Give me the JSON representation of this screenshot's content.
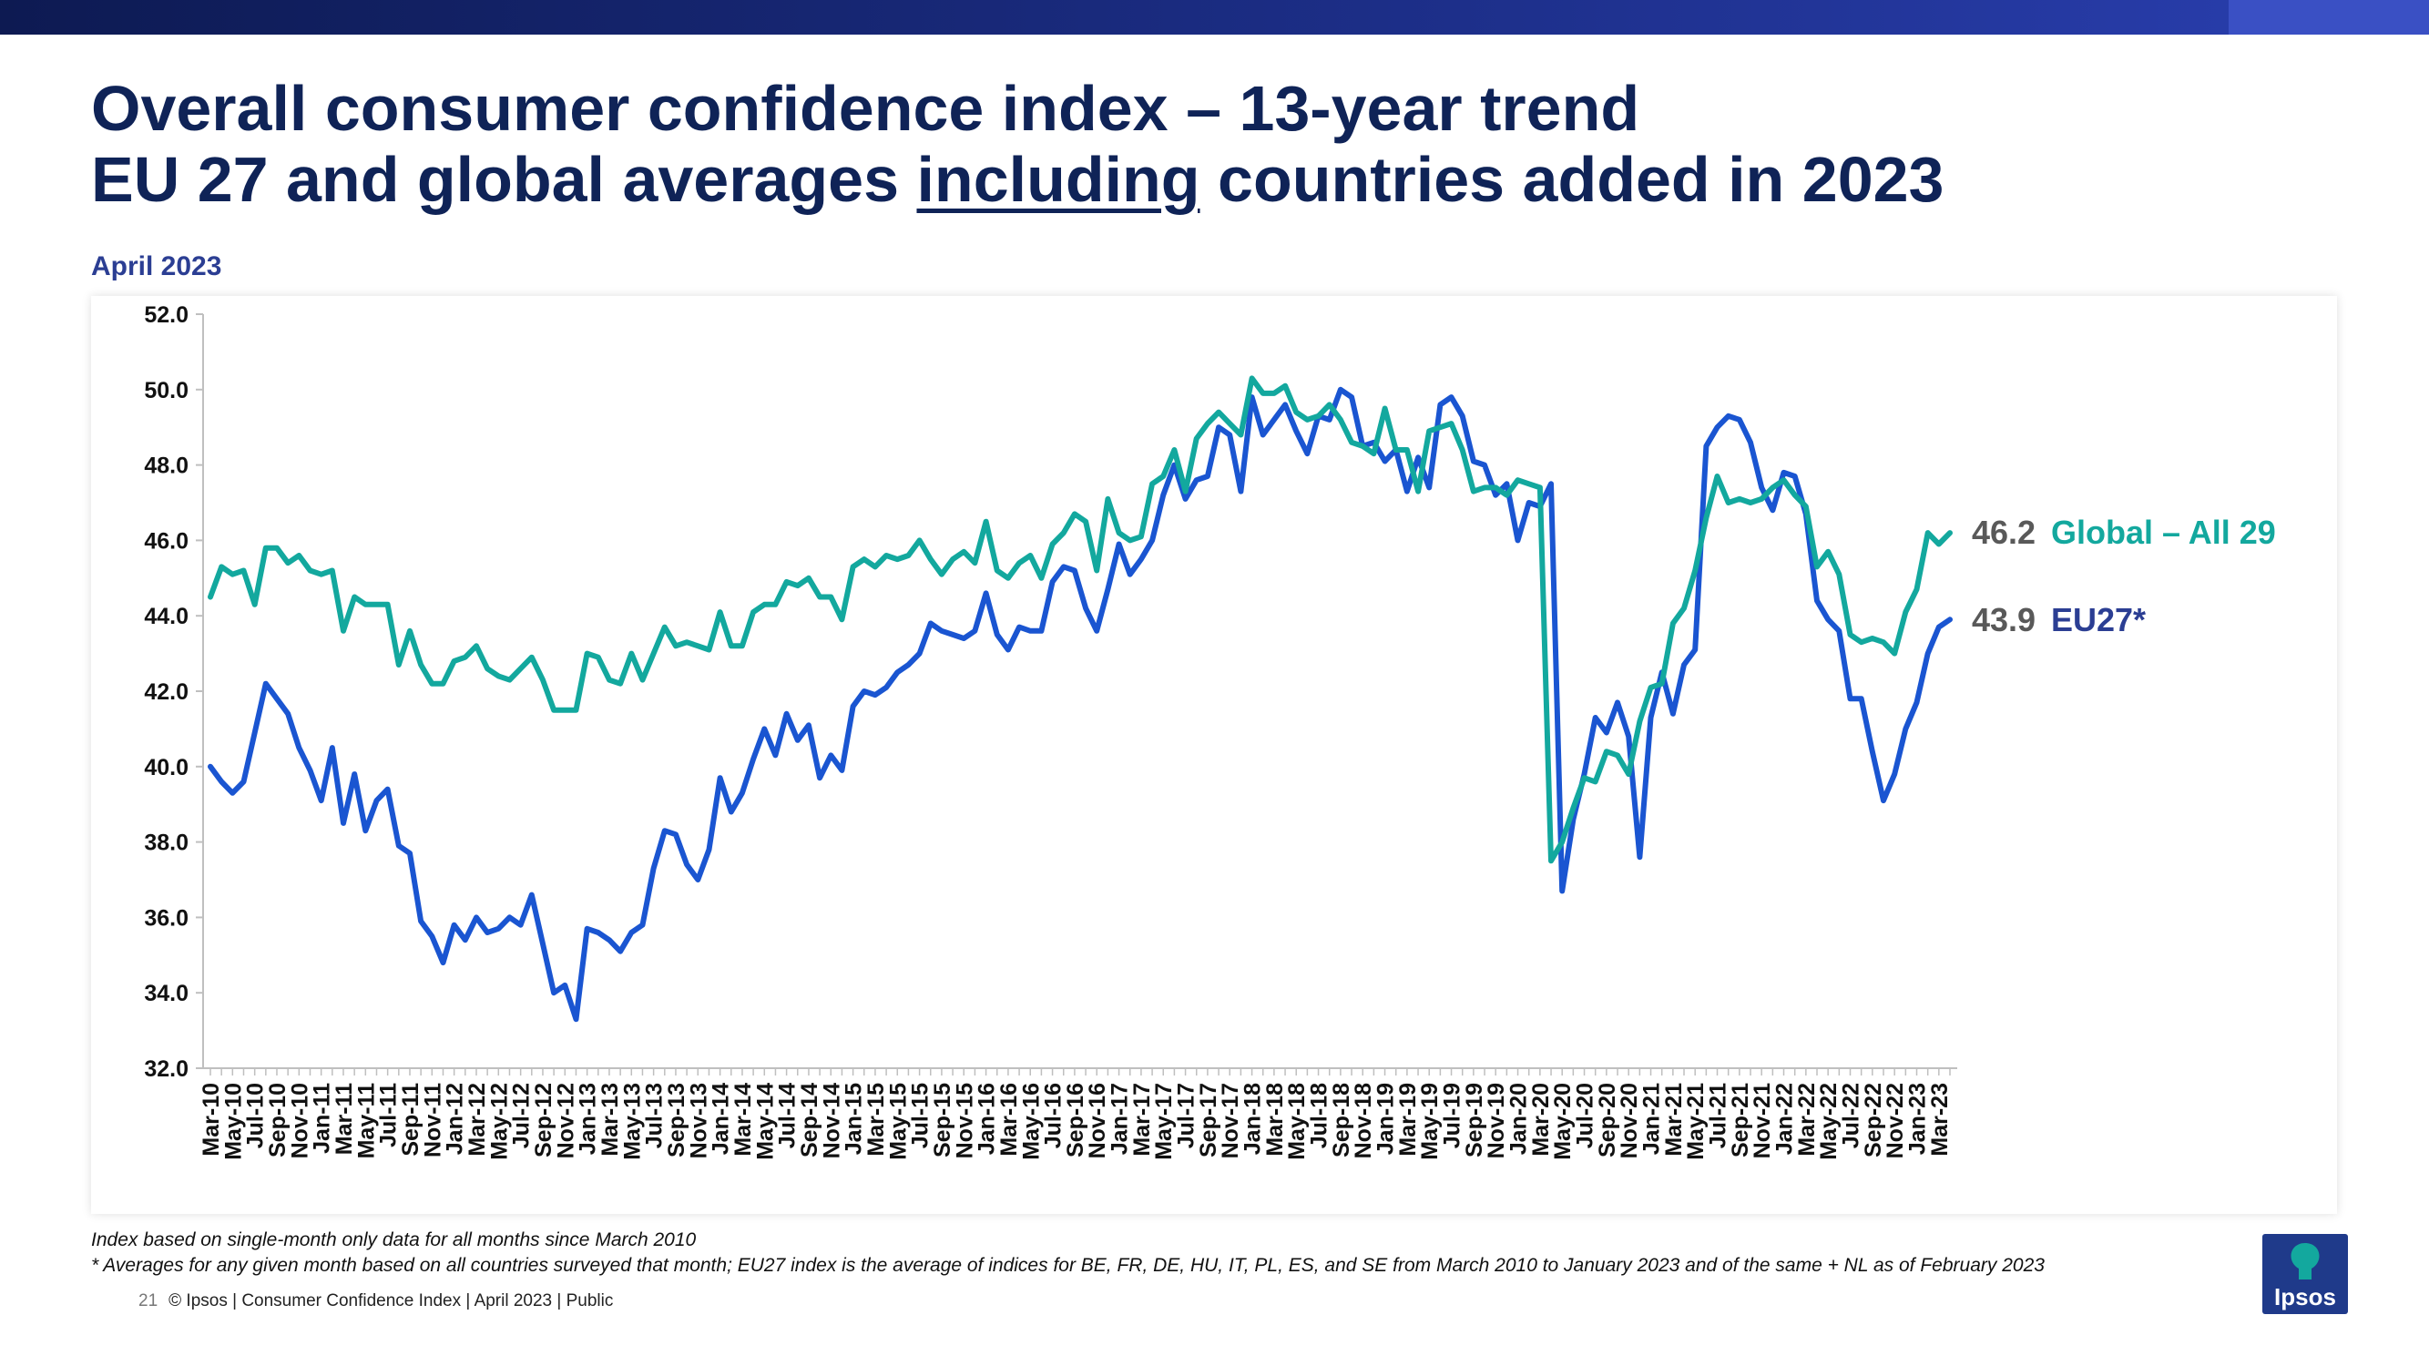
{
  "header": {
    "title_line1": "Overall consumer confidence index – 13-year trend",
    "title_line2_pre": "EU 27 and global averages ",
    "title_line2_underlined": "including",
    "title_line2_post": " countries added in 2023",
    "subtitle": "April 2023"
  },
  "chart_data": {
    "type": "line",
    "title": "Overall consumer confidence index – 13-year trend",
    "ylim": [
      32,
      52
    ],
    "yticks": [
      "32.0",
      "34.0",
      "36.0",
      "38.0",
      "40.0",
      "42.0",
      "44.0",
      "46.0",
      "48.0",
      "50.0",
      "52.0"
    ],
    "x_start": "Mar-10",
    "x_end": "Apr-23",
    "x_tick_labels": [
      "Mar-10",
      "May-10",
      "Jul-10",
      "Sep-10",
      "Nov-10",
      "Jan-11",
      "Mar-11",
      "May-11",
      "Jul-11",
      "Sep-11",
      "Nov-11",
      "Jan-12",
      "Mar-12",
      "May-12",
      "Jul-12",
      "Sep-12",
      "Nov-12",
      "Jan-13",
      "Mar-13",
      "May-13",
      "Jul-13",
      "Sep-13",
      "Nov-13",
      "Jan-14",
      "Mar-14",
      "May-14",
      "Jul-14",
      "Sep-14",
      "Nov-14",
      "Jan-15",
      "Mar-15",
      "May-15",
      "Jul-15",
      "Sep-15",
      "Nov-15",
      "Jan-16",
      "Mar-16",
      "May-16",
      "Jul-16",
      "Sep-16",
      "Nov-16",
      "Jan-17",
      "Mar-17",
      "May-17",
      "Jul-17",
      "Sep-17",
      "Nov-17",
      "Jan-18",
      "Mar-18",
      "May-18",
      "Jul-18",
      "Sep-18",
      "Nov-18",
      "Jan-19",
      "Mar-19",
      "May-19",
      "Jul-19",
      "Sep-19",
      "Nov-19",
      "Jan-20",
      "Mar-20",
      "May-20",
      "Jul-20",
      "Sep-20",
      "Nov-20",
      "Jan-21",
      "Mar-21",
      "May-21",
      "Jul-21",
      "Sep-21",
      "Nov-21",
      "Jan-22",
      "Mar-22",
      "May-22",
      "Jul-22",
      "Sep-22",
      "Nov-22",
      "Jan-23",
      "Mar-23"
    ],
    "grid": false,
    "legend": "end-of-line labels",
    "series": [
      {
        "name": "Global – All 29",
        "end_value_label": "46.2",
        "color": "#13a89e",
        "values": [
          44.5,
          45.3,
          45.1,
          45.2,
          44.3,
          45.8,
          45.8,
          45.4,
          45.6,
          45.2,
          45.1,
          45.2,
          43.6,
          44.5,
          44.3,
          44.3,
          44.3,
          42.7,
          43.6,
          42.7,
          42.2,
          42.2,
          42.8,
          42.9,
          43.2,
          42.6,
          42.4,
          42.3,
          42.6,
          42.9,
          42.3,
          41.5,
          41.5,
          41.5,
          43.0,
          42.9,
          42.3,
          42.2,
          43.0,
          42.3,
          43.0,
          43.7,
          43.2,
          43.3,
          43.2,
          43.1,
          44.1,
          43.2,
          43.2,
          44.1,
          44.3,
          44.3,
          44.9,
          44.8,
          45.0,
          44.5,
          44.5,
          43.9,
          45.3,
          45.5,
          45.3,
          45.6,
          45.5,
          45.6,
          46.0,
          45.5,
          45.1,
          45.5,
          45.7,
          45.4,
          46.5,
          45.2,
          45.0,
          45.4,
          45.6,
          45.0,
          45.9,
          46.2,
          46.7,
          46.5,
          45.2,
          47.1,
          46.2,
          46.0,
          46.1,
          47.5,
          47.7,
          48.4,
          47.3,
          48.7,
          49.1,
          49.4,
          49.1,
          48.8,
          50.3,
          49.9,
          49.9,
          50.1,
          49.4,
          49.2,
          49.3,
          49.6,
          49.2,
          48.6,
          48.5,
          48.3,
          49.5,
          48.4,
          48.4,
          47.3,
          48.9,
          49.0,
          49.1,
          48.4,
          47.3,
          47.4,
          47.4,
          47.2,
          47.6,
          47.5,
          47.4,
          37.5,
          38.0,
          38.9,
          39.7,
          39.6,
          40.4,
          40.3,
          39.8,
          41.2,
          42.1,
          42.2,
          43.8,
          44.2,
          45.2,
          46.6,
          47.7,
          47.0,
          47.1,
          47.0,
          47.1,
          47.4,
          47.6,
          47.2,
          46.9,
          45.3,
          45.7,
          45.1,
          43.5,
          43.3,
          43.4,
          43.3,
          43.0,
          44.1,
          44.7,
          46.2,
          45.9,
          46.2
        ]
      },
      {
        "name": "EU27*",
        "end_value_label": "43.9",
        "color": "#1a55d1",
        "values": [
          40.0,
          39.6,
          39.3,
          39.6,
          40.9,
          42.2,
          41.8,
          41.4,
          40.5,
          39.9,
          39.1,
          40.5,
          38.5,
          39.8,
          38.3,
          39.1,
          39.4,
          37.9,
          37.7,
          35.9,
          35.5,
          34.8,
          35.8,
          35.4,
          36.0,
          35.6,
          35.7,
          36.0,
          35.8,
          36.6,
          35.3,
          34.0,
          34.2,
          33.3,
          35.7,
          35.6,
          35.4,
          35.1,
          35.6,
          35.8,
          37.3,
          38.3,
          38.2,
          37.4,
          37.0,
          37.8,
          39.7,
          38.8,
          39.3,
          40.2,
          41.0,
          40.3,
          41.4,
          40.7,
          41.1,
          39.7,
          40.3,
          39.9,
          41.6,
          42.0,
          41.9,
          42.1,
          42.5,
          42.7,
          43.0,
          43.8,
          43.6,
          43.5,
          43.4,
          43.6,
          44.6,
          43.5,
          43.1,
          43.7,
          43.6,
          43.6,
          44.9,
          45.3,
          45.2,
          44.2,
          43.6,
          44.7,
          45.9,
          45.1,
          45.5,
          46.0,
          47.2,
          48.0,
          47.1,
          47.6,
          47.7,
          49.0,
          48.8,
          47.3,
          49.8,
          48.8,
          49.2,
          49.6,
          48.9,
          48.3,
          49.3,
          49.2,
          50.0,
          49.8,
          48.5,
          48.6,
          48.1,
          48.4,
          47.3,
          48.2,
          47.4,
          49.6,
          49.8,
          49.3,
          48.1,
          48.0,
          47.2,
          47.5,
          46.0,
          47.0,
          46.9,
          47.5,
          36.7,
          38.6,
          39.8,
          41.3,
          40.9,
          41.7,
          40.8,
          37.6,
          41.3,
          42.5,
          41.4,
          42.7,
          43.1,
          48.5,
          49.0,
          49.3,
          49.2,
          48.6,
          47.4,
          46.8,
          47.8,
          47.7,
          46.7,
          44.4,
          43.9,
          43.6,
          41.8,
          41.8,
          40.4,
          39.1,
          39.8,
          41.0,
          41.7,
          43.0,
          43.7,
          43.9
        ]
      }
    ]
  },
  "footnotes": {
    "line1": "Index based on single-month only data for all months since March 2010",
    "line2": "* Averages for any given month based on all countries surveyed that month; EU27 index is the average of indices for BE, FR, DE, HU, IT, PL, ES, and SE from March 2010 to January 2023 and of the same + NL as of February 2023"
  },
  "footer": {
    "page_number": "21",
    "text": "© Ipsos | Consumer Confidence Index | April 2023 | Public"
  },
  "logo": {
    "text": "Ipsos",
    "colors": {
      "background": "#1f3a8a",
      "accent": "#13a89e"
    }
  }
}
